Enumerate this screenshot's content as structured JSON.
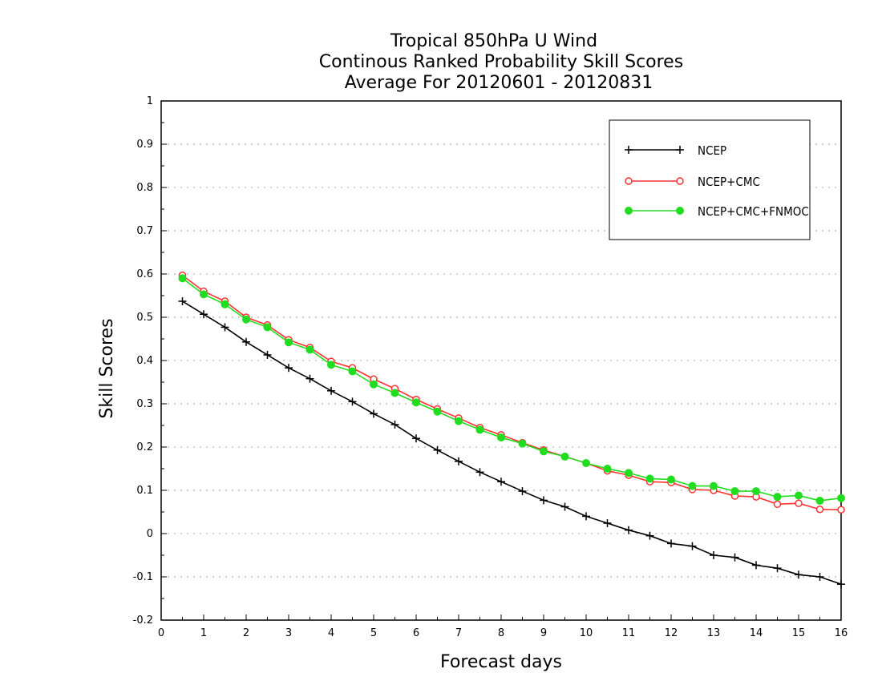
{
  "chart_data": {
    "type": "line",
    "title": [
      "Tropical 850hPa U Wind",
      "Continous Ranked Probability Skill Scores",
      "Average For 20120601 - 20120831"
    ],
    "xlabel": "Forecast days",
    "ylabel": "Skill Scores",
    "xlim": [
      0,
      16
    ],
    "ylim": [
      -0.2,
      1
    ],
    "xticks": [
      0,
      1,
      2,
      3,
      4,
      5,
      6,
      7,
      8,
      9,
      10,
      11,
      12,
      13,
      14,
      15,
      16
    ],
    "xtick_labels": [
      "0",
      "1",
      "2",
      "3",
      "4",
      "5",
      "6",
      "7",
      "8",
      "9",
      "10",
      "11",
      "12",
      "13",
      "14",
      "15",
      "16"
    ],
    "yticks": [
      -0.2,
      -0.1,
      0,
      0.1,
      0.2,
      0.3,
      0.4,
      0.5,
      0.6,
      0.7,
      0.8,
      0.9,
      1
    ],
    "ytick_labels": [
      "-0.2",
      "-0.1",
      "0",
      "0.1",
      "0.2",
      "0.3",
      "0.4",
      "0.5",
      "0.6",
      "0.7",
      "0.8",
      "0.9",
      "1"
    ],
    "grid": "horizontal dotted",
    "legend_position": "top-right",
    "x": [
      0.5,
      1,
      1.5,
      2,
      2.5,
      3,
      3.5,
      4,
      4.5,
      5,
      5.5,
      6,
      6.5,
      7,
      7.5,
      8,
      8.5,
      9,
      9.5,
      10,
      10.5,
      11,
      11.5,
      12,
      12.5,
      13,
      13.5,
      14,
      14.5,
      15,
      15.5,
      16
    ],
    "series": [
      {
        "name": "NCEP",
        "color": "#000000",
        "marker": "plus",
        "values": [
          0.537,
          0.507,
          0.477,
          0.443,
          0.413,
          0.383,
          0.358,
          0.33,
          0.305,
          0.277,
          0.252,
          0.22,
          0.193,
          0.167,
          0.142,
          0.12,
          0.098,
          0.077,
          0.062,
          0.04,
          0.024,
          0.008,
          -0.005,
          -0.023,
          -0.029,
          -0.05,
          -0.055,
          -0.073,
          -0.08,
          -0.095,
          -0.1,
          -0.117
        ]
      },
      {
        "name": "NCEP+CMC",
        "color": "#ff3030",
        "marker": "open-circle",
        "values": [
          0.597,
          0.56,
          0.537,
          0.5,
          0.482,
          0.448,
          0.43,
          0.398,
          0.383,
          0.357,
          0.335,
          0.31,
          0.288,
          0.267,
          0.245,
          0.228,
          0.21,
          0.193,
          0.178,
          0.163,
          0.145,
          0.135,
          0.12,
          0.118,
          0.102,
          0.1,
          0.087,
          0.085,
          0.068,
          0.07,
          0.056,
          0.055
        ]
      },
      {
        "name": "NCEP+CMC+FNMOC",
        "color": "#20dd20",
        "marker": "filled-circle",
        "values": [
          0.59,
          0.553,
          0.53,
          0.495,
          0.477,
          0.442,
          0.425,
          0.39,
          0.375,
          0.345,
          0.325,
          0.303,
          0.282,
          0.26,
          0.24,
          0.222,
          0.208,
          0.19,
          0.178,
          0.163,
          0.15,
          0.14,
          0.127,
          0.125,
          0.11,
          0.11,
          0.098,
          0.098,
          0.085,
          0.088,
          0.076,
          0.082
        ]
      }
    ]
  }
}
